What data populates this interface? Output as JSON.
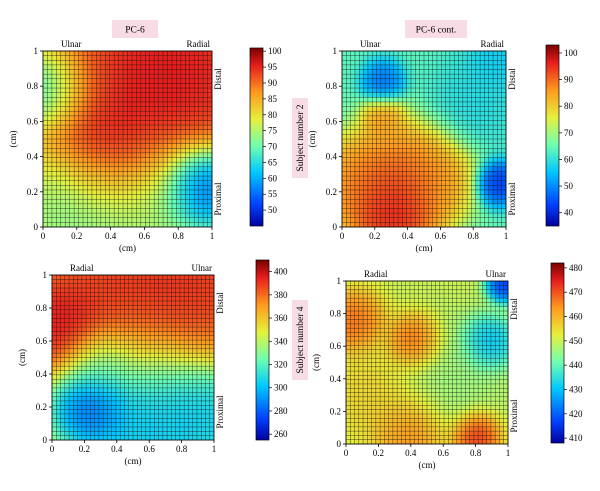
{
  "header": {
    "left_title": "PC-6",
    "right_title": "PC-6 cont.",
    "subject_top": "Subject number 2",
    "subject_bottom": "Subject number 4"
  },
  "chart_data": [
    {
      "type": "heatmap",
      "panel": "top-left",
      "xlabel": "(cm)",
      "ylabel": "(cm)",
      "xlim": [
        0,
        1
      ],
      "ylim": [
        0,
        1
      ],
      "xticks": [
        "0",
        "0.2",
        "0.4",
        "0.6",
        "0.8",
        "1"
      ],
      "yticks": [
        "0",
        "0.2",
        "0.4",
        "0.6",
        "0.8",
        "1"
      ],
      "corner_left": "Ulnar",
      "corner_right": "Radial",
      "side_top": "Distal",
      "side_bottom": "Proximal",
      "colorbar": {
        "min": 45,
        "max": 101,
        "ticks": [
          50,
          55,
          60,
          65,
          70,
          75,
          80,
          85,
          90,
          95,
          100
        ]
      },
      "base_value": 82,
      "blobs": [
        {
          "x": 0.4,
          "y": 0.42,
          "value": 100,
          "r": 0.18
        },
        {
          "x": 0.6,
          "y": 0.8,
          "value": 98,
          "r": 0.28
        },
        {
          "x": 0.85,
          "y": 0.9,
          "value": 97,
          "r": 0.22
        },
        {
          "x": 0.22,
          "y": 0.78,
          "value": 92,
          "r": 0.15
        },
        {
          "x": 0.06,
          "y": 0.78,
          "value": 58,
          "r": 0.12
        },
        {
          "x": 0.94,
          "y": 0.22,
          "value": 48,
          "r": 0.13
        },
        {
          "x": 0.22,
          "y": 0.12,
          "value": 70,
          "r": 0.2
        },
        {
          "x": 0.6,
          "y": 0.12,
          "value": 72,
          "r": 0.22
        }
      ]
    },
    {
      "type": "heatmap",
      "panel": "top-right",
      "xlabel": "(cm)",
      "ylabel": "(cm)",
      "xlim": [
        0,
        1
      ],
      "ylim": [
        0,
        1
      ],
      "xticks": [
        "0",
        "0.2",
        "0.4",
        "0.6",
        "0.8",
        "1"
      ],
      "yticks": [
        "0",
        "0.2",
        "0.4",
        "0.6",
        "0.8",
        "1"
      ],
      "corner_left": "Ulnar",
      "corner_right": "Radial",
      "side_top": "Distal",
      "side_bottom": "Proximal",
      "colorbar": {
        "min": 35,
        "max": 103,
        "ticks": [
          40,
          50,
          60,
          70,
          80,
          90,
          100
        ]
      },
      "base_value": 64,
      "blobs": [
        {
          "x": 0.3,
          "y": 0.08,
          "value": 103,
          "r": 0.14
        },
        {
          "x": 0.35,
          "y": 0.25,
          "value": 95,
          "r": 0.18
        },
        {
          "x": 0.55,
          "y": 0.3,
          "value": 88,
          "r": 0.14
        },
        {
          "x": 0.1,
          "y": 0.25,
          "value": 90,
          "r": 0.14
        },
        {
          "x": 0.25,
          "y": 0.62,
          "value": 88,
          "r": 0.07
        },
        {
          "x": 0.25,
          "y": 0.82,
          "value": 45,
          "r": 0.07
        },
        {
          "x": 0.95,
          "y": 0.25,
          "value": 38,
          "r": 0.07
        },
        {
          "x": 0.8,
          "y": 0.7,
          "value": 58,
          "r": 0.15
        },
        {
          "x": 0.95,
          "y": 0.95,
          "value": 55,
          "r": 0.1
        }
      ]
    },
    {
      "type": "heatmap",
      "panel": "bottom-left",
      "xlabel": "(cm)",
      "ylabel": "(cm)",
      "xlim": [
        0,
        1
      ],
      "ylim": [
        0,
        1
      ],
      "xticks": [
        "0",
        "0.2",
        "0.4",
        "0.6",
        "0.8",
        "1"
      ],
      "yticks": [
        "0",
        "0.2",
        "0.4",
        "0.6",
        "0.8",
        "1"
      ],
      "corner_left": "Radial",
      "corner_right": "Ulnar",
      "side_top": "Distal",
      "side_bottom": "Proximal",
      "colorbar": {
        "min": 255,
        "max": 410,
        "ticks": [
          260,
          280,
          300,
          320,
          340,
          360,
          380,
          400
        ]
      },
      "base_value": 345,
      "blobs": [
        {
          "x": 0.5,
          "y": 0.88,
          "value": 400,
          "r": 0.35
        },
        {
          "x": 0.05,
          "y": 0.7,
          "value": 405,
          "r": 0.15
        },
        {
          "x": 0.9,
          "y": 0.9,
          "value": 395,
          "r": 0.2
        },
        {
          "x": 0.25,
          "y": 0.22,
          "value": 262,
          "r": 0.13
        },
        {
          "x": 0.6,
          "y": 0.2,
          "value": 288,
          "r": 0.25
        },
        {
          "x": 0.95,
          "y": 0.15,
          "value": 300,
          "r": 0.15
        },
        {
          "x": 0.3,
          "y": 0.45,
          "value": 320,
          "r": 0.12
        }
      ]
    },
    {
      "type": "heatmap",
      "panel": "bottom-right",
      "xlabel": "(cm)",
      "ylabel": "(cm)",
      "xlim": [
        0,
        1
      ],
      "ylim": [
        0,
        1
      ],
      "xticks": [
        "0",
        "0.2",
        "0.4",
        "0.6",
        "0.8",
        "1"
      ],
      "yticks": [
        "0",
        "0.2",
        "0.4",
        "0.6",
        "0.8",
        "1"
      ],
      "corner_left": "Radial",
      "corner_right": "Ulnar",
      "side_top": "Distal",
      "side_bottom": "Proximal",
      "colorbar": {
        "min": 408,
        "max": 482,
        "ticks": [
          410,
          420,
          430,
          440,
          450,
          460,
          470,
          480
        ]
      },
      "base_value": 450,
      "blobs": [
        {
          "x": 0.42,
          "y": 0.62,
          "value": 475,
          "r": 0.09
        },
        {
          "x": 0.05,
          "y": 0.75,
          "value": 470,
          "r": 0.1
        },
        {
          "x": 0.8,
          "y": 0.05,
          "value": 478,
          "r": 0.08
        },
        {
          "x": 0.4,
          "y": 0.08,
          "value": 468,
          "r": 0.12
        },
        {
          "x": 0.88,
          "y": 0.62,
          "value": 425,
          "r": 0.09
        },
        {
          "x": 0.98,
          "y": 0.98,
          "value": 410,
          "r": 0.06
        },
        {
          "x": 0.6,
          "y": 0.4,
          "value": 445,
          "r": 0.2
        },
        {
          "x": 0.2,
          "y": 0.3,
          "value": 458,
          "r": 0.15
        }
      ]
    }
  ]
}
